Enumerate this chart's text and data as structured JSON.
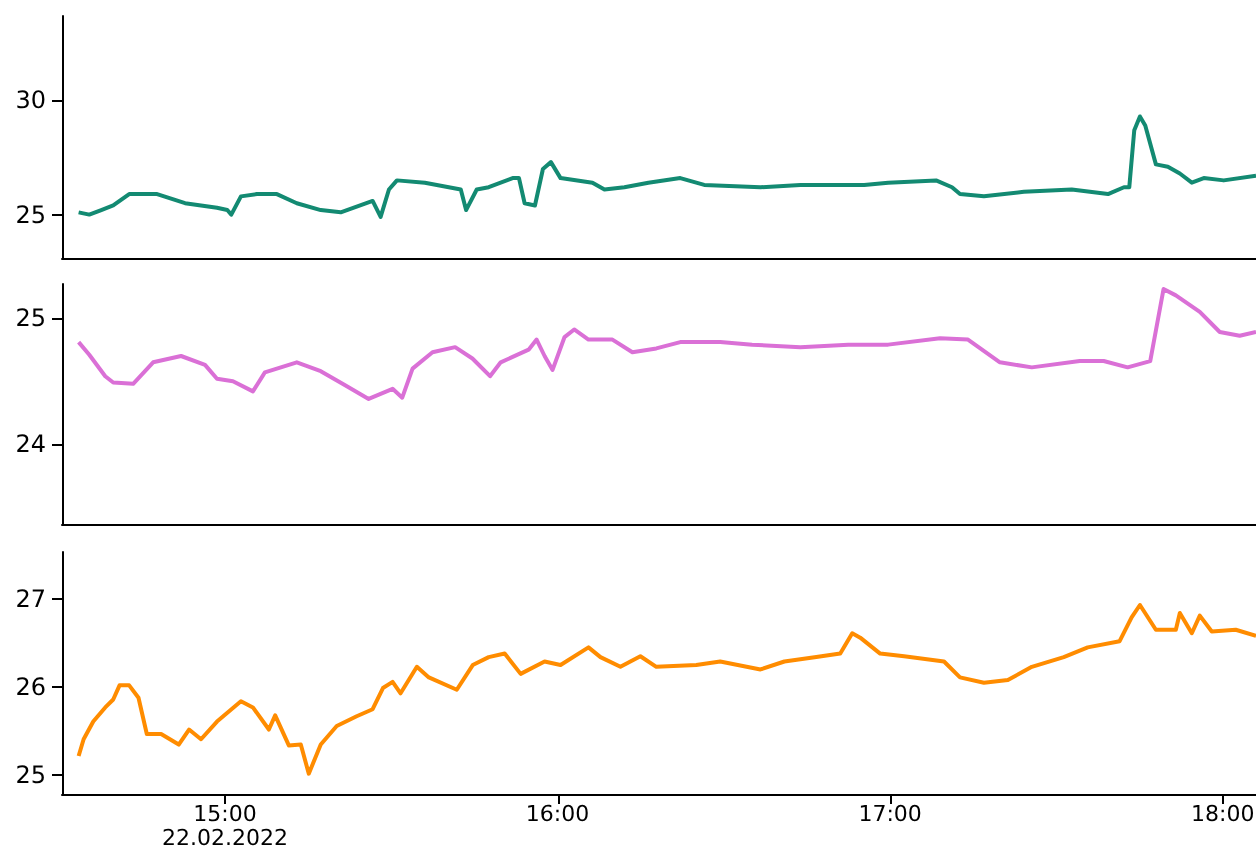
{
  "chart_data": [
    {
      "type": "line",
      "xlim": [
        14.51,
        18.1
      ],
      "ylim": [
        23.1,
        33.7
      ],
      "yticks": [
        25,
        30
      ],
      "tick_labels": "y",
      "marker": "none",
      "series": [
        {
          "color": "#138a72",
          "x": [
            14.56,
            14.592,
            14.628,
            14.664,
            14.712,
            14.796,
            14.88,
            14.976,
            15.007,
            15.019,
            15.048,
            15.096,
            15.156,
            15.216,
            15.288,
            15.348,
            15.444,
            15.468,
            15.493,
            15.517,
            15.601,
            15.709,
            15.725,
            15.757,
            15.793,
            15.865,
            15.884,
            15.901,
            15.932,
            15.956,
            15.98,
            16.009,
            16.105,
            16.141,
            16.201,
            16.273,
            16.369,
            16.441,
            16.61,
            16.73,
            16.922,
            16.994,
            17.138,
            17.186,
            17.21,
            17.282,
            17.402,
            17.546,
            17.655,
            17.703,
            17.719,
            17.734,
            17.751,
            17.767,
            17.799,
            17.835,
            17.871,
            17.907,
            17.943,
            18.003,
            18.1
          ],
          "values": [
            25.1,
            25.0,
            25.2,
            25.4,
            25.9,
            25.9,
            25.5,
            25.3,
            25.2,
            25.0,
            25.8,
            25.9,
            25.9,
            25.5,
            25.2,
            25.1,
            25.6,
            24.9,
            26.1,
            26.5,
            26.4,
            26.1,
            25.2,
            26.1,
            26.2,
            26.6,
            26.6,
            25.5,
            25.4,
            27.0,
            27.3,
            26.6,
            26.4,
            26.1,
            26.2,
            26.4,
            26.6,
            26.3,
            26.2,
            26.3,
            26.3,
            26.4,
            26.5,
            26.2,
            25.9,
            25.8,
            26.0,
            26.1,
            25.9,
            26.2,
            26.2,
            28.7,
            29.3,
            28.9,
            27.2,
            27.1,
            26.8,
            26.4,
            26.6,
            26.5,
            26.7
          ]
        }
      ]
    },
    {
      "type": "line",
      "xlim": [
        14.51,
        18.1
      ],
      "ylim": [
        23.37,
        25.27
      ],
      "yticks": [
        24,
        25
      ],
      "tick_labels": "y",
      "marker": "none",
      "series": [
        {
          "color": "#da70d6",
          "x": [
            14.56,
            14.592,
            14.64,
            14.664,
            14.724,
            14.784,
            14.868,
            14.94,
            14.976,
            15.024,
            15.084,
            15.12,
            15.216,
            15.288,
            15.36,
            15.432,
            15.504,
            15.533,
            15.564,
            15.624,
            15.692,
            15.744,
            15.797,
            15.829,
            15.913,
            15.937,
            15.961,
            15.985,
            16.021,
            16.05,
            16.093,
            16.165,
            16.225,
            16.297,
            16.369,
            16.489,
            16.585,
            16.73,
            16.874,
            16.994,
            17.15,
            17.234,
            17.33,
            17.426,
            17.57,
            17.642,
            17.714,
            17.782,
            17.822,
            17.859,
            17.931,
            17.991,
            18.051,
            18.1
          ],
          "values": [
            24.81,
            24.71,
            24.54,
            24.49,
            24.48,
            24.65,
            24.7,
            24.63,
            24.52,
            24.5,
            24.42,
            24.57,
            24.65,
            24.58,
            24.47,
            24.36,
            24.44,
            24.37,
            24.6,
            24.73,
            24.77,
            24.68,
            24.54,
            24.65,
            24.75,
            24.83,
            24.7,
            24.59,
            24.85,
            24.91,
            24.83,
            24.83,
            24.73,
            24.76,
            24.81,
            24.81,
            24.79,
            24.77,
            24.79,
            24.79,
            24.84,
            24.83,
            24.65,
            24.61,
            24.66,
            24.66,
            24.61,
            24.66,
            25.23,
            25.18,
            25.05,
            24.89,
            24.86,
            24.89
          ]
        }
      ]
    },
    {
      "type": "line",
      "xlim": [
        14.51,
        18.1
      ],
      "ylim": [
        24.79,
        27.53
      ],
      "yticks": [
        25,
        26,
        27
      ],
      "xticks": [
        {
          "value": 15,
          "label": "15:00\n22.02.2022"
        },
        {
          "value": 16,
          "label": "16:00"
        },
        {
          "value": 17,
          "label": "17:00"
        },
        {
          "value": 18,
          "label": "18:00"
        }
      ],
      "marker": "none",
      "series": [
        {
          "color": "#ff8c00",
          "x": [
            14.56,
            14.575,
            14.604,
            14.64,
            14.664,
            14.683,
            14.712,
            14.74,
            14.765,
            14.808,
            14.861,
            14.892,
            14.928,
            14.976,
            15.048,
            15.084,
            15.132,
            15.151,
            15.192,
            15.228,
            15.252,
            15.288,
            15.336,
            15.396,
            15.444,
            15.475,
            15.504,
            15.528,
            15.577,
            15.613,
            15.697,
            15.745,
            15.793,
            15.841,
            15.889,
            15.961,
            16.009,
            16.093,
            16.129,
            16.189,
            16.249,
            16.297,
            16.417,
            16.489,
            16.61,
            16.682,
            16.778,
            16.85,
            16.886,
            16.91,
            16.97,
            17.042,
            17.162,
            17.21,
            17.282,
            17.354,
            17.426,
            17.522,
            17.594,
            17.69,
            17.726,
            17.751,
            17.799,
            17.859,
            17.871,
            17.907,
            17.931,
            17.967,
            18.039,
            18.1
          ],
          "values": [
            25.22,
            25.41,
            25.61,
            25.77,
            25.86,
            26.02,
            26.02,
            25.88,
            25.47,
            25.47,
            25.35,
            25.52,
            25.41,
            25.61,
            25.84,
            25.77,
            25.52,
            25.68,
            25.34,
            25.35,
            25.02,
            25.35,
            25.56,
            25.67,
            25.75,
            25.99,
            26.06,
            25.93,
            26.23,
            26.11,
            25.97,
            26.25,
            26.34,
            26.38,
            26.15,
            26.29,
            26.25,
            26.45,
            26.34,
            26.23,
            26.35,
            26.23,
            26.25,
            26.29,
            26.2,
            26.29,
            26.34,
            26.38,
            26.61,
            26.56,
            26.38,
            26.35,
            26.29,
            26.11,
            26.05,
            26.08,
            26.23,
            26.34,
            26.45,
            26.52,
            26.79,
            26.93,
            26.65,
            26.65,
            26.84,
            26.61,
            26.81,
            26.63,
            26.65,
            26.58
          ]
        }
      ]
    }
  ]
}
